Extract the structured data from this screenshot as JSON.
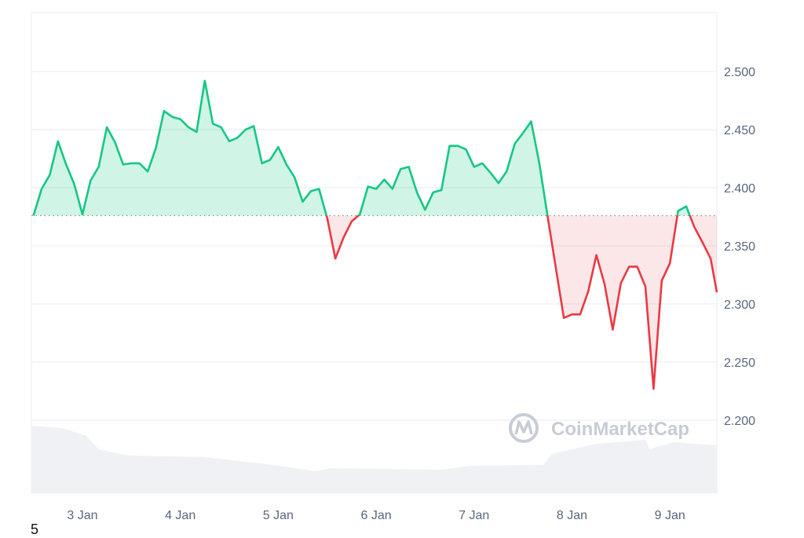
{
  "chart_data": {
    "type": "area",
    "title": "",
    "xlabel": "",
    "ylabel": "",
    "ylim": [
      2.15,
      2.55
    ],
    "y_ticks": [
      "2.200",
      "2.250",
      "2.300",
      "2.350",
      "2.400",
      "2.450",
      "2.500"
    ],
    "x_ticks": [
      "3 Jan",
      "4 Jan",
      "5 Jan",
      "6 Jan",
      "7 Jan",
      "8 Jan",
      "9 Jan"
    ],
    "y_axis_position": "right",
    "grid": true,
    "baseline": 2.376,
    "colors": {
      "up": "#16c784",
      "down": "#ea3943",
      "volume": "#eff1f4",
      "grid": "#eff2f5",
      "axis_text": "#58667e"
    },
    "series": [
      {
        "points": [
          [
            "2 Jan 12:00",
            2.376
          ],
          [
            "2 Jan 14:00",
            2.399
          ],
          [
            "2 Jan 16:00",
            2.411
          ],
          [
            "2 Jan 18:00",
            2.44
          ],
          [
            "2 Jan 20:00",
            2.42
          ],
          [
            "2 Jan 22:00",
            2.403
          ],
          [
            "3 Jan 00:00",
            2.377
          ],
          [
            "3 Jan 02:00",
            2.406
          ],
          [
            "3 Jan 04:00",
            2.418
          ],
          [
            "3 Jan 06:00",
            2.452
          ],
          [
            "3 Jan 08:00",
            2.439
          ],
          [
            "3 Jan 10:00",
            2.42
          ],
          [
            "3 Jan 12:00",
            2.421
          ],
          [
            "3 Jan 14:00",
            2.421
          ],
          [
            "3 Jan 16:00",
            2.414
          ],
          [
            "3 Jan 18:00",
            2.434
          ],
          [
            "3 Jan 20:00",
            2.466
          ],
          [
            "3 Jan 22:00",
            2.461
          ],
          [
            "4 Jan 00:00",
            2.459
          ],
          [
            "4 Jan 02:00",
            2.452
          ],
          [
            "4 Jan 04:00",
            2.448
          ],
          [
            "4 Jan 06:00",
            2.492
          ],
          [
            "4 Jan 08:00",
            2.455
          ],
          [
            "4 Jan 10:00",
            2.452
          ],
          [
            "4 Jan 12:00",
            2.44
          ],
          [
            "4 Jan 14:00",
            2.443
          ],
          [
            "4 Jan 16:00",
            2.45
          ],
          [
            "4 Jan 18:00",
            2.453
          ],
          [
            "4 Jan 20:00",
            2.421
          ],
          [
            "4 Jan 22:00",
            2.424
          ],
          [
            "5 Jan 00:00",
            2.435
          ],
          [
            "5 Jan 02:00",
            2.42
          ],
          [
            "5 Jan 04:00",
            2.409
          ],
          [
            "5 Jan 06:00",
            2.388
          ],
          [
            "5 Jan 08:00",
            2.397
          ],
          [
            "5 Jan 10:00",
            2.399
          ],
          [
            "5 Jan 12:00",
            2.374
          ],
          [
            "5 Jan 14:00",
            2.339
          ],
          [
            "5 Jan 16:00",
            2.357
          ],
          [
            "5 Jan 18:00",
            2.371
          ],
          [
            "5 Jan 20:00",
            2.377
          ],
          [
            "5 Jan 22:00",
            2.401
          ],
          [
            "6 Jan 00:00",
            2.399
          ],
          [
            "6 Jan 02:00",
            2.407
          ],
          [
            "6 Jan 04:00",
            2.399
          ],
          [
            "6 Jan 06:00",
            2.416
          ],
          [
            "6 Jan 08:00",
            2.418
          ],
          [
            "6 Jan 10:00",
            2.396
          ],
          [
            "6 Jan 12:00",
            2.381
          ],
          [
            "6 Jan 14:00",
            2.396
          ],
          [
            "6 Jan 16:00",
            2.398
          ],
          [
            "6 Jan 18:00",
            2.436
          ],
          [
            "6 Jan 20:00",
            2.436
          ],
          [
            "6 Jan 22:00",
            2.433
          ],
          [
            "7 Jan 00:00",
            2.418
          ],
          [
            "7 Jan 02:00",
            2.421
          ],
          [
            "7 Jan 04:00",
            2.413
          ],
          [
            "7 Jan 06:00",
            2.404
          ],
          [
            "7 Jan 08:00",
            2.414
          ],
          [
            "7 Jan 10:00",
            2.438
          ],
          [
            "7 Jan 12:00",
            2.447
          ],
          [
            "7 Jan 14:00",
            2.457
          ],
          [
            "7 Jan 16:00",
            2.421
          ],
          [
            "7 Jan 18:00",
            2.376
          ],
          [
            "7 Jan 20:00",
            2.332
          ],
          [
            "7 Jan 22:00",
            2.288
          ],
          [
            "8 Jan 00:00",
            2.291
          ],
          [
            "8 Jan 02:00",
            2.291
          ],
          [
            "8 Jan 04:00",
            2.311
          ],
          [
            "8 Jan 06:00",
            2.342
          ],
          [
            "8 Jan 08:00",
            2.317
          ],
          [
            "8 Jan 10:00",
            2.278
          ],
          [
            "8 Jan 12:00",
            2.318
          ],
          [
            "8 Jan 14:00",
            2.332
          ],
          [
            "8 Jan 16:00",
            2.332
          ],
          [
            "8 Jan 18:00",
            2.315
          ],
          [
            "8 Jan 20:00",
            2.227
          ],
          [
            "8 Jan 22:00",
            2.32
          ],
          [
            "9 Jan 00:00",
            2.335
          ],
          [
            "9 Jan 02:00",
            2.38
          ],
          [
            "9 Jan 04:00",
            2.384
          ],
          [
            "9 Jan 06:00",
            2.366
          ],
          [
            "9 Jan 08:00",
            2.353
          ],
          [
            "9 Jan 10:00",
            2.339
          ],
          [
            "9 Jan 12:00",
            2.31
          ]
        ]
      }
    ],
    "volume_relative": [
      [
        "2 Jan 12:00",
        86
      ],
      [
        "2 Jan 19:00",
        83
      ],
      [
        "3 Jan 01:00",
        73
      ],
      [
        "3 Jan 04:00",
        56
      ],
      [
        "3 Jan 11:00",
        48
      ],
      [
        "4 Jan 06:00",
        46
      ],
      [
        "4 Jan 23:00",
        36
      ],
      [
        "5 Jan 09:00",
        28
      ],
      [
        "5 Jan 13:00",
        32
      ],
      [
        "6 Jan 16:00",
        30
      ],
      [
        "6 Jan 23:00",
        35
      ],
      [
        "7 Jan 17:00",
        36
      ],
      [
        "7 Jan 19:00",
        50
      ],
      [
        "8 Jan 06:00",
        63
      ],
      [
        "8 Jan 18:00",
        68
      ],
      [
        "8 Jan 19:00",
        56
      ],
      [
        "9 Jan 01:00",
        65
      ],
      [
        "9 Jan 12:00",
        61
      ]
    ]
  },
  "watermark": "CoinMarketCap",
  "footnote": "5"
}
